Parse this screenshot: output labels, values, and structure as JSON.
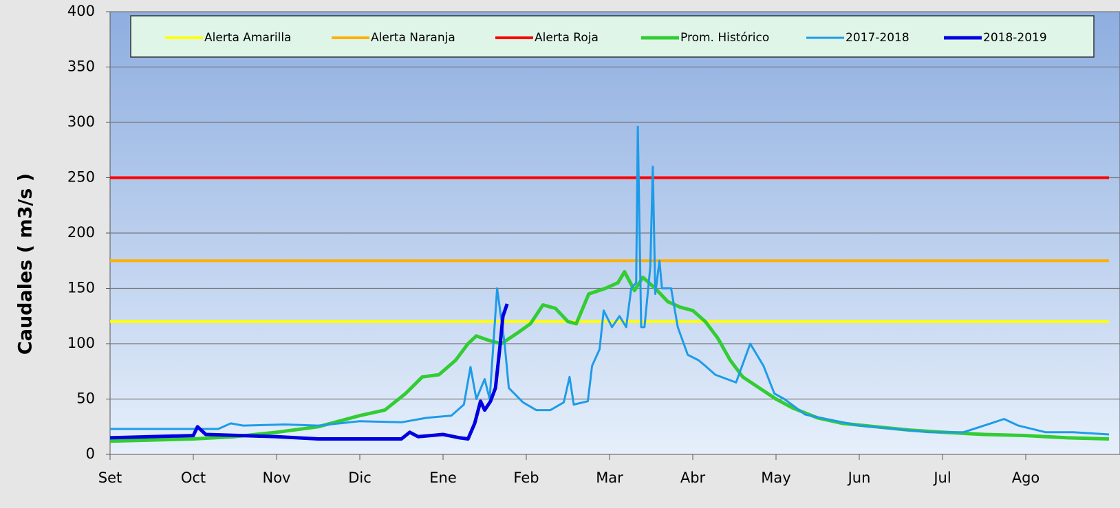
{
  "chart_data": {
    "type": "line",
    "y_label": "Caudales ( m3/s )",
    "xlim": [
      0,
      12
    ],
    "xticks": [
      {
        "value": 0,
        "label": "Set"
      },
      {
        "value": 1,
        "label": "Oct"
      },
      {
        "value": 2,
        "label": "Nov"
      },
      {
        "value": 3,
        "label": "Dic"
      },
      {
        "value": 4,
        "label": "Ene"
      },
      {
        "value": 5,
        "label": "Feb"
      },
      {
        "value": 6,
        "label": "Mar"
      },
      {
        "value": 7,
        "label": "Abr"
      },
      {
        "value": 8,
        "label": "May"
      },
      {
        "value": 9,
        "label": "Jun"
      },
      {
        "value": 10,
        "label": "Jul"
      },
      {
        "value": 11,
        "label": "Ago"
      }
    ],
    "ylim": [
      0,
      400
    ],
    "yticks": [
      0,
      50,
      100,
      150,
      200,
      250,
      300,
      350,
      400
    ],
    "grid": true,
    "legend": "top",
    "series": [
      {
        "name": "Alerta Amarilla",
        "color": "#ffff00",
        "width": 4,
        "x": [
          0,
          12
        ],
        "values": [
          120,
          120
        ]
      },
      {
        "name": "Alerta Naranja",
        "color": "#ffb000",
        "width": 4,
        "x": [
          0,
          12
        ],
        "values": [
          175,
          175
        ]
      },
      {
        "name": "Alerta Roja",
        "color": "#ff0000",
        "width": 4,
        "x": [
          0,
          12
        ],
        "values": [
          250,
          250
        ]
      },
      {
        "name": "Prom. Histórico",
        "color": "#33cc33",
        "width": 5,
        "x": [
          0,
          1,
          1.5,
          2,
          2.5,
          3,
          3.3,
          3.55,
          3.75,
          3.95,
          4.15,
          4.3,
          4.4,
          4.55,
          4.7,
          4.9,
          5.05,
          5.2,
          5.35,
          5.5,
          5.6,
          5.75,
          5.95,
          6.1,
          6.18,
          6.3,
          6.4,
          6.55,
          6.7,
          6.85,
          7,
          7.15,
          7.3,
          7.45,
          7.6,
          7.8,
          8,
          8.2,
          8.5,
          8.8,
          9.2,
          9.6,
          10,
          10.5,
          11,
          11.5,
          12
        ],
        "values": [
          12,
          14,
          16,
          20,
          25,
          35,
          40,
          55,
          70,
          72,
          85,
          100,
          107,
          103,
          100,
          110,
          118,
          135,
          132,
          120,
          118,
          145,
          150,
          155,
          165,
          148,
          160,
          150,
          138,
          133,
          130,
          120,
          105,
          85,
          70,
          60,
          50,
          42,
          33,
          28,
          25,
          22,
          20,
          18,
          17,
          15,
          14
        ]
      },
      {
        "name": "2017-2018",
        "color": "#1e9be8",
        "width": 3,
        "x": [
          0,
          1.3,
          1.45,
          1.6,
          2.1,
          2.5,
          3,
          3.5,
          3.8,
          4.1,
          4.25,
          4.33,
          4.4,
          4.5,
          4.56,
          4.65,
          4.74,
          4.79,
          4.96,
          5.12,
          5.29,
          5.45,
          5.52,
          5.57,
          5.74,
          5.79,
          5.88,
          5.93,
          6.03,
          6.12,
          6.2,
          6.26,
          6.32,
          6.34,
          6.38,
          6.42,
          6.49,
          6.52,
          6.55,
          6.6,
          6.63,
          6.74,
          6.82,
          6.94,
          7.07,
          7.15,
          7.27,
          7.52,
          7.69,
          7.85,
          7.98,
          8.1,
          8.35,
          8.6,
          9,
          9.42,
          9.83,
          10.25,
          10.58,
          10.74,
          10.91,
          11.24,
          11.57,
          12
        ],
        "values": [
          23,
          23,
          28,
          26,
          27,
          26,
          30,
          29,
          33,
          35,
          45,
          79,
          50,
          68,
          50,
          150,
          100,
          60,
          47,
          40,
          40,
          47,
          70,
          45,
          48,
          80,
          95,
          130,
          115,
          125,
          115,
          150,
          155,
          296,
          115,
          115,
          170,
          260,
          145,
          175,
          150,
          150,
          115,
          90,
          85,
          80,
          72,
          65,
          100,
          80,
          55,
          50,
          36,
          32,
          26,
          23,
          20,
          20,
          28,
          32,
          26,
          20,
          20,
          18
        ]
      },
      {
        "name": "2018-2019",
        "color": "#0000e0",
        "width": 5,
        "x": [
          0,
          1,
          1.05,
          1.15,
          2,
          2.5,
          3.5,
          3.6,
          3.7,
          4,
          4.2,
          4.3,
          4.38,
          4.45,
          4.5,
          4.57,
          4.63,
          4.68,
          4.72,
          4.77
        ],
        "values": [
          15,
          17,
          25,
          18,
          16,
          14,
          14,
          20,
          16,
          18,
          15,
          14,
          28,
          48,
          40,
          48,
          60,
          95,
          125,
          136
        ]
      }
    ]
  }
}
